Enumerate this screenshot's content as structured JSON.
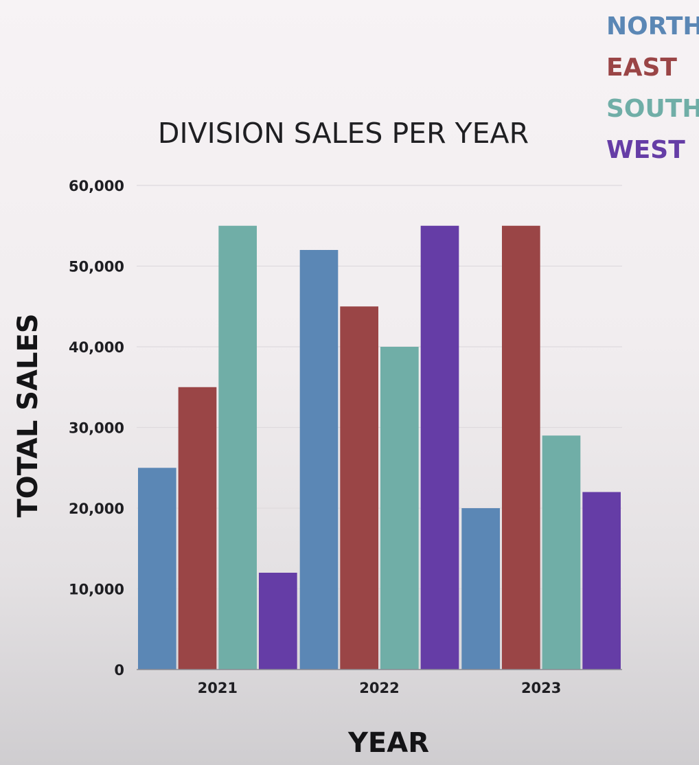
{
  "chart_data": {
    "type": "bar",
    "title": "DIVISION SALES PER YEAR",
    "xlabel": "YEAR",
    "ylabel": "TOTAL SALES",
    "categories": [
      "2021",
      "2022",
      "2023"
    ],
    "ylim": [
      0,
      60000
    ],
    "yticks": [
      0,
      10000,
      20000,
      30000,
      40000,
      50000,
      60000
    ],
    "ytick_labels": [
      "0",
      "10,000",
      "20,000",
      "30,000",
      "40,000",
      "50,000",
      "60,000"
    ],
    "grid": true,
    "legend_position": "top-right",
    "series": [
      {
        "name": "NORTH",
        "color": "#5b87b5",
        "values": [
          25000,
          52000,
          20000
        ]
      },
      {
        "name": "EAST",
        "color": "#9a4546",
        "values": [
          35000,
          45000,
          55000
        ]
      },
      {
        "name": "SOUTH",
        "color": "#70aea7",
        "values": [
          55000,
          40000,
          29000
        ]
      },
      {
        "name": "WEST",
        "color": "#653da6",
        "values": [
          12000,
          55000,
          22000
        ]
      }
    ]
  }
}
